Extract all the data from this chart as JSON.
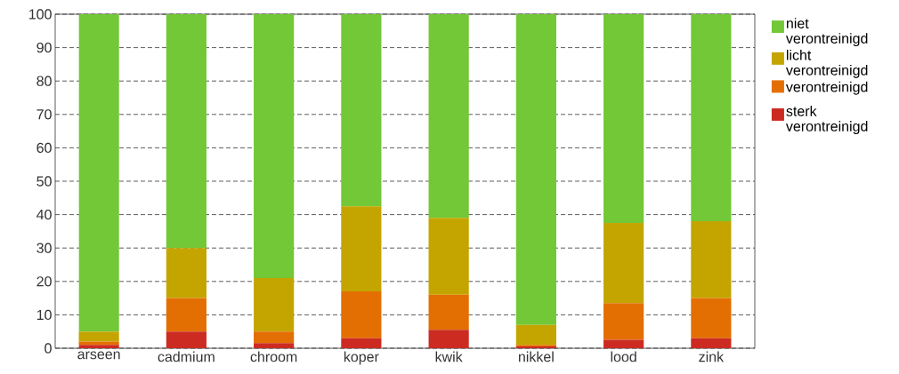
{
  "chart_data": {
    "type": "bar",
    "stacked": true,
    "categories": [
      "arseen",
      "cadmium",
      "chroom",
      "koper",
      "kwik",
      "nikkel",
      "lood",
      "zink"
    ],
    "series": [
      {
        "name": "sterk verontreinigd",
        "color": "#cc2b22",
        "values": [
          1,
          5,
          1.5,
          3,
          5.5,
          0.5,
          2.5,
          3
        ]
      },
      {
        "name": "verontreinigd",
        "color": "#e36f02",
        "values": [
          1,
          10,
          3.5,
          14,
          10.5,
          0.5,
          11,
          12
        ]
      },
      {
        "name": "licht verontreinigd",
        "color": "#c4a500",
        "values": [
          3,
          15,
          16,
          25.5,
          23,
          6,
          24,
          23
        ]
      },
      {
        "name": "niet verontreinigd",
        "color": "#72c837",
        "values": [
          95,
          70,
          79,
          57.5,
          61,
          93,
          62.5,
          62
        ]
      }
    ],
    "ylim": [
      0,
      100
    ],
    "yticks": [
      0,
      10,
      20,
      30,
      40,
      50,
      60,
      70,
      80,
      90,
      100
    ],
    "grid": "y",
    "legend": "right"
  }
}
